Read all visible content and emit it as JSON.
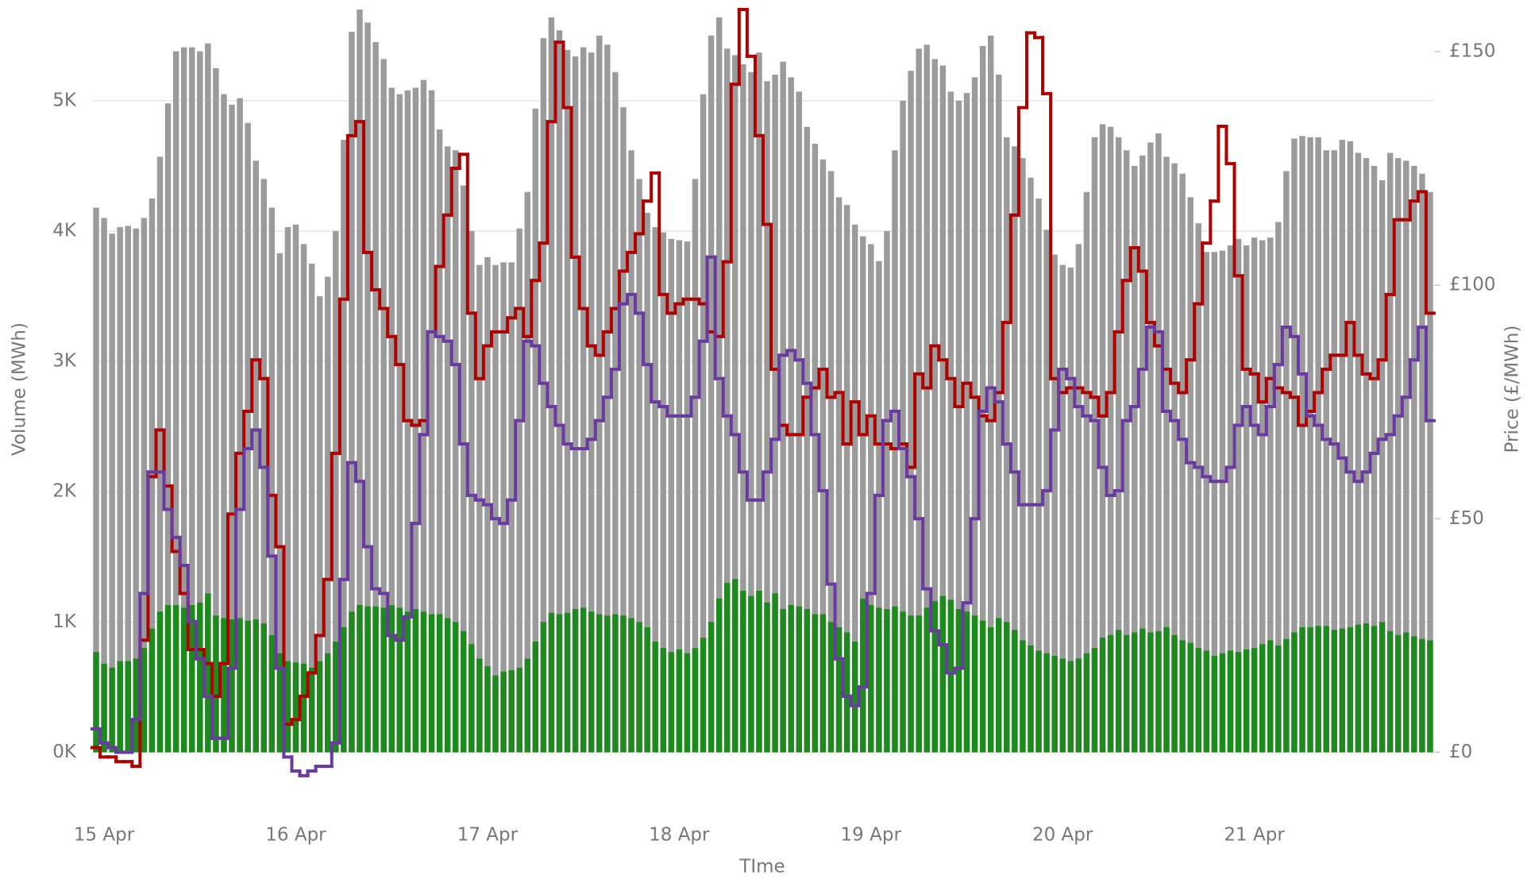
{
  "chart_data": {
    "type": "combo",
    "x_label": "TIme",
    "y_label": "Volume (MWh)",
    "y2_label": "Price (£/MWh)",
    "grid": true,
    "xlim": [
      -0.5,
      167.5
    ],
    "ylim": [
      -186,
      5700
    ],
    "y2lim": [
      -5.2,
      159
    ],
    "xticks": [
      {
        "value": 0,
        "label": "15 Apr"
      },
      {
        "value": 24,
        "label": "16 Apr"
      },
      {
        "value": 48,
        "label": "17 Apr"
      },
      {
        "value": 72,
        "label": "18 Apr"
      },
      {
        "value": 96,
        "label": "19 Apr"
      },
      {
        "value": 120,
        "label": "20 Apr"
      },
      {
        "value": 144,
        "label": "21 Apr"
      }
    ],
    "yticks": [
      {
        "value": 0,
        "label": "0K"
      },
      {
        "value": 1000,
        "label": "1K"
      },
      {
        "value": 2000,
        "label": "2K"
      },
      {
        "value": 3000,
        "label": "3K"
      },
      {
        "value": 4000,
        "label": "4K"
      },
      {
        "value": 5000,
        "label": "5K"
      }
    ],
    "y2ticks": [
      {
        "value": 0,
        "label": "£0"
      },
      {
        "value": 50,
        "label": "£50"
      },
      {
        "value": 100,
        "label": "£100"
      },
      {
        "value": 150,
        "label": "£150"
      }
    ],
    "x": [
      0,
      1,
      2,
      3,
      4,
      5,
      6,
      7,
      8,
      9,
      10,
      11,
      12,
      13,
      14,
      15,
      16,
      17,
      18,
      19,
      20,
      21,
      22,
      23,
      24,
      25,
      26,
      27,
      28,
      29,
      30,
      31,
      32,
      33,
      34,
      35,
      36,
      37,
      38,
      39,
      40,
      41,
      42,
      43,
      44,
      45,
      46,
      47,
      48,
      49,
      50,
      51,
      52,
      53,
      54,
      55,
      56,
      57,
      58,
      59,
      60,
      61,
      62,
      63,
      64,
      65,
      66,
      67,
      68,
      69,
      70,
      71,
      72,
      73,
      74,
      75,
      76,
      77,
      78,
      79,
      80,
      81,
      82,
      83,
      84,
      85,
      86,
      87,
      88,
      89,
      90,
      91,
      92,
      93,
      94,
      95,
      96,
      97,
      98,
      99,
      100,
      101,
      102,
      103,
      104,
      105,
      106,
      107,
      108,
      109,
      110,
      111,
      112,
      113,
      114,
      115,
      116,
      117,
      118,
      119,
      120,
      121,
      122,
      123,
      124,
      125,
      126,
      127,
      128,
      129,
      130,
      131,
      132,
      133,
      134,
      135,
      136,
      137,
      138,
      139,
      140,
      141,
      142,
      143,
      144,
      145,
      146,
      147,
      148,
      149,
      150,
      151,
      152,
      153,
      154,
      155,
      156,
      157,
      158,
      159,
      160,
      161,
      162,
      163,
      164,
      165,
      166,
      167
    ],
    "series": [
      {
        "type": "bar",
        "axis": "y",
        "color": "#9b9b9b",
        "values": [
          4180,
          4100,
          3980,
          4030,
          4040,
          4020,
          4100,
          4250,
          4570,
          4980,
          5380,
          5410,
          5410,
          5380,
          5440,
          5250,
          5050,
          4970,
          5020,
          4830,
          4540,
          4400,
          4180,
          3830,
          4030,
          4050,
          3900,
          3750,
          3500,
          3650,
          4000,
          4700,
          5530,
          5700,
          5600,
          5450,
          5320,
          5100,
          5050,
          5080,
          5100,
          5160,
          5080,
          4780,
          4650,
          4620,
          4350,
          4000,
          3740,
          3800,
          3740,
          3760,
          3760,
          4020,
          4300,
          4940,
          5480,
          5640,
          5540,
          5390,
          5340,
          5410,
          5370,
          5500,
          5430,
          5220,
          4950,
          4620,
          4400,
          4140,
          4030,
          3990,
          3940,
          3930,
          3920,
          4400,
          5050,
          5500,
          5640,
          5400,
          5350,
          5280,
          5220,
          5370,
          5150,
          5200,
          5300,
          5180,
          5070,
          4800,
          4670,
          4550,
          4460,
          4260,
          4200,
          4050,
          3960,
          3900,
          3770,
          4000,
          4620,
          5000,
          5230,
          5400,
          5430,
          5320,
          5270,
          5070,
          5000,
          5060,
          5180,
          5420,
          5500,
          5200,
          4720,
          4650,
          4560,
          4410,
          4250,
          4010,
          3820,
          3740,
          3720,
          3900,
          4300,
          4720,
          4820,
          4800,
          4720,
          4620,
          4500,
          4580,
          4680,
          4750,
          4570,
          4520,
          4440,
          4260,
          4060,
          3840,
          3840,
          3850,
          3890,
          3940,
          3890,
          3950,
          3930,
          3950,
          4070,
          4460,
          4710,
          4730,
          4720,
          4720,
          4620,
          4620,
          4700,
          4690,
          4600,
          4560,
          4500,
          4390,
          4600,
          4560,
          4540,
          4500,
          4440,
          4300
        ]
      },
      {
        "type": "bar",
        "axis": "y",
        "color": "#1e8a1e",
        "values": [
          770,
          680,
          650,
          700,
          700,
          720,
          800,
          950,
          1080,
          1130,
          1130,
          1110,
          1130,
          1150,
          1220,
          1050,
          1030,
          1020,
          1030,
          1010,
          1020,
          990,
          900,
          760,
          700,
          690,
          680,
          650,
          700,
          760,
          850,
          960,
          1080,
          1130,
          1120,
          1120,
          1110,
          1130,
          1110,
          1080,
          1100,
          1080,
          1060,
          1060,
          1030,
          1000,
          930,
          830,
          720,
          660,
          590,
          620,
          630,
          650,
          720,
          850,
          1000,
          1070,
          1060,
          1070,
          1100,
          1110,
          1080,
          1060,
          1050,
          1060,
          1050,
          1030,
          1000,
          960,
          850,
          800,
          770,
          790,
          760,
          800,
          880,
          1000,
          1180,
          1300,
          1330,
          1240,
          1200,
          1240,
          1150,
          1220,
          1100,
          1130,
          1120,
          1100,
          1060,
          1060,
          1000,
          960,
          920,
          850,
          1180,
          1130,
          1110,
          1100,
          1120,
          1080,
          1050,
          1050,
          1110,
          1160,
          1200,
          1170,
          1100,
          1080,
          1050,
          1010,
          960,
          1030,
          1000,
          940,
          860,
          820,
          780,
          760,
          740,
          720,
          700,
          720,
          760,
          800,
          880,
          900,
          940,
          900,
          920,
          950,
          920,
          930,
          960,
          900,
          860,
          840,
          800,
          780,
          740,
          760,
          780,
          770,
          790,
          800,
          830,
          860,
          820,
          870,
          920,
          960,
          960,
          970,
          970,
          940,
          950,
          960,
          980,
          990,
          970,
          1000,
          930,
          900,
          920,
          890,
          870,
          860
        ]
      },
      {
        "type": "step",
        "axis": "y2",
        "color": "#b00000",
        "values": [
          1,
          -1,
          -1,
          -2,
          -2,
          -3,
          24,
          59,
          69,
          57,
          43,
          34,
          22,
          22,
          19,
          12,
          19,
          51,
          64,
          73,
          84,
          80,
          55,
          44,
          6,
          7,
          12,
          17,
          25,
          37,
          64,
          97,
          132,
          135,
          107,
          99,
          95,
          89,
          83,
          71,
          70,
          71,
          90,
          104,
          115,
          125,
          128,
          94,
          80,
          87,
          90,
          90,
          93,
          95,
          89,
          101,
          109,
          135,
          152,
          138,
          106,
          95,
          87,
          85,
          90,
          95,
          103,
          107,
          111,
          118,
          124,
          98,
          94,
          96,
          97,
          97,
          96,
          90,
          89,
          105,
          143,
          159,
          149,
          132,
          113,
          82,
          70,
          68,
          68,
          76,
          78,
          82,
          76,
          77,
          66,
          75,
          68,
          72,
          66,
          66,
          65,
          66,
          61,
          81,
          78,
          87,
          84,
          80,
          74,
          79,
          76,
          72,
          71,
          77,
          92,
          115,
          138,
          154,
          153,
          141,
          80,
          77,
          78,
          78,
          77,
          76,
          72,
          77,
          90,
          101,
          108,
          103,
          92,
          87,
          82,
          79,
          77,
          84,
          96,
          109,
          118,
          134,
          126,
          102,
          82,
          81,
          75,
          80,
          78,
          77,
          76,
          70,
          73,
          77,
          82,
          85,
          85,
          92,
          85,
          81,
          80,
          84,
          98,
          114,
          114,
          118,
          120,
          94
        ]
      },
      {
        "type": "step",
        "axis": "y2",
        "color": "#6a3aa2",
        "values": [
          5,
          2,
          1,
          0,
          0,
          7,
          34,
          60,
          60,
          52,
          46,
          40,
          28,
          20,
          12,
          3,
          3,
          18,
          52,
          65,
          69,
          61,
          42,
          18,
          -1,
          -4,
          -5,
          -4,
          -3,
          -3,
          2,
          37,
          62,
          58,
          44,
          35,
          34,
          25,
          24,
          29,
          49,
          68,
          90,
          89,
          88,
          83,
          66,
          55,
          54,
          53,
          50,
          49,
          54,
          71,
          88,
          87,
          79,
          74,
          70,
          66,
          65,
          65,
          67,
          71,
          76,
          82,
          96,
          98,
          94,
          83,
          75,
          74,
          72,
          72,
          72,
          76,
          88,
          106,
          80,
          72,
          68,
          60,
          54,
          54,
          60,
          67,
          85,
          86,
          84,
          79,
          68,
          56,
          36,
          20,
          12,
          10,
          14,
          34,
          55,
          71,
          73,
          65,
          59,
          50,
          35,
          26,
          23,
          17,
          18,
          32,
          50,
          73,
          78,
          75,
          66,
          60,
          53,
          53,
          53,
          56,
          69,
          82,
          80,
          74,
          72,
          71,
          61,
          55,
          56,
          71,
          74,
          82,
          91,
          90,
          73,
          71,
          67,
          62,
          61,
          59,
          58,
          58,
          61,
          70,
          74,
          70,
          68,
          74,
          83,
          91,
          89,
          81,
          72,
          70,
          67,
          66,
          63,
          60,
          58,
          60,
          64,
          67,
          68,
          72,
          76,
          84,
          91,
          71
        ]
      }
    ]
  }
}
